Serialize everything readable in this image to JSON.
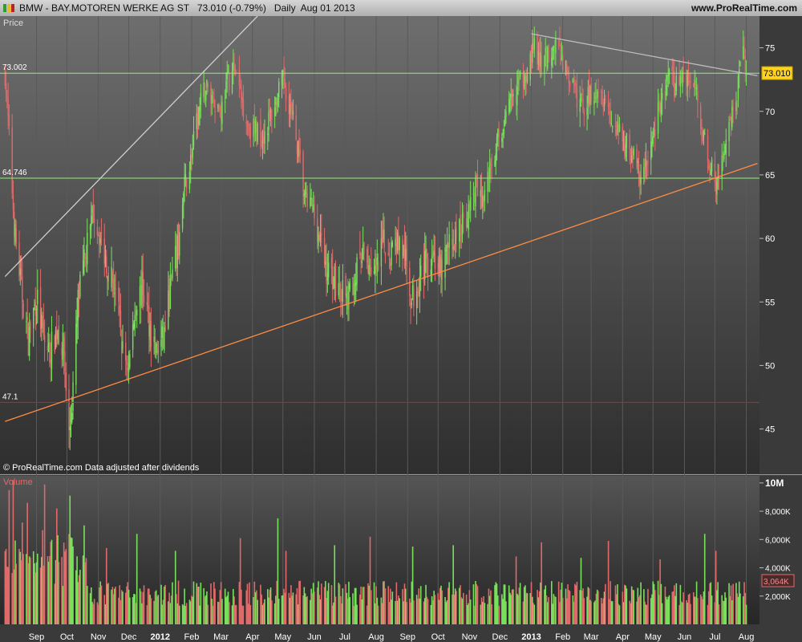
{
  "header": {
    "symbol": "BMW",
    "name": "BAY.MOTOREN WERKE AG ST",
    "price_text": "73.010 (-0.79%)",
    "period": "Daily",
    "date": "Aug 01 2013",
    "site": "www.ProRealTime.com"
  },
  "chart_data": {
    "type": "candlestick",
    "price_panel": {
      "label": "Price",
      "ylim": [
        41.5,
        77.5
      ],
      "y_ticks": [
        45,
        50,
        55,
        60,
        65,
        70,
        75
      ],
      "last_price": 73.01,
      "last_price_label": "73.010",
      "footer_note": "© ProRealTime.com  Data adjusted after dividends",
      "horizontal_lines": [
        {
          "label": "73.002",
          "value": 73.002,
          "color": "#8ef07a"
        },
        {
          "label": "64.746",
          "value": 64.746,
          "color": "#8ef07a"
        },
        {
          "label": "47.1",
          "value": 47.1,
          "color": "#d81c1c"
        }
      ],
      "trend_lines": [
        {
          "name": "support",
          "color": "#ff8c42",
          "points": [
            [
              "2011-08-01",
              45.6
            ],
            [
              "2013-08-12",
              65.9
            ]
          ]
        },
        {
          "name": "resistance",
          "color": "#bdbdbd",
          "points": [
            [
              "2013-01-01",
              76.1
            ],
            [
              "2013-08-12",
              72.8
            ]
          ]
        },
        {
          "name": "steep",
          "color": "#cfcfcf",
          "points": [
            [
              "2011-08-01",
              57.0
            ],
            [
              "2012-04-06",
              77.5
            ]
          ]
        }
      ],
      "price_path": [
        [
          "2011-08-01",
          73.0
        ],
        [
          "2011-08-05",
          68.0
        ],
        [
          "2011-08-10",
          61.0
        ],
        [
          "2011-08-17",
          56.0
        ],
        [
          "2011-08-24",
          52.0
        ],
        [
          "2011-09-01",
          55.5
        ],
        [
          "2011-09-08",
          52.0
        ],
        [
          "2011-09-14",
          51.0
        ],
        [
          "2011-09-22",
          53.0
        ],
        [
          "2011-09-28",
          51.0
        ],
        [
          "2011-10-03",
          44.5
        ],
        [
          "2011-10-06",
          47.0
        ],
        [
          "2011-10-12",
          55.0
        ],
        [
          "2011-10-20",
          59.0
        ],
        [
          "2011-10-27",
          62.0
        ],
        [
          "2011-11-03",
          60.0
        ],
        [
          "2011-11-10",
          58.0
        ],
        [
          "2011-11-18",
          56.0
        ],
        [
          "2011-11-25",
          51.0
        ],
        [
          "2011-12-01",
          50.0
        ],
        [
          "2011-12-08",
          55.0
        ],
        [
          "2011-12-15",
          56.0
        ],
        [
          "2011-12-22",
          53.0
        ],
        [
          "2011-12-28",
          51.0
        ],
        [
          "2012-01-04",
          52.0
        ],
        [
          "2012-01-11",
          56.0
        ],
        [
          "2012-01-18",
          59.0
        ],
        [
          "2012-01-25",
          64.0
        ],
        [
          "2012-02-01",
          66.5
        ],
        [
          "2012-02-08",
          70.0
        ],
        [
          "2012-02-15",
          72.0
        ],
        [
          "2012-02-22",
          71.0
        ],
        [
          "2012-03-01",
          70.0
        ],
        [
          "2012-03-08",
          72.5
        ],
        [
          "2012-03-14",
          73.5
        ],
        [
          "2012-03-21",
          71.0
        ],
        [
          "2012-03-28",
          69.0
        ],
        [
          "2012-04-04",
          68.5
        ],
        [
          "2012-04-11",
          68.0
        ],
        [
          "2012-04-18",
          69.5
        ],
        [
          "2012-04-25",
          71.0
        ],
        [
          "2012-05-02",
          72.5
        ],
        [
          "2012-05-09",
          70.0
        ],
        [
          "2012-05-16",
          67.0
        ],
        [
          "2012-05-23",
          63.0
        ],
        [
          "2012-05-30",
          62.5
        ],
        [
          "2012-06-06",
          60.0
        ],
        [
          "2012-06-13",
          57.5
        ],
        [
          "2012-06-20",
          57.0
        ],
        [
          "2012-06-27",
          56.0
        ],
        [
          "2012-07-04",
          55.0
        ],
        [
          "2012-07-11",
          57.0
        ],
        [
          "2012-07-18",
          58.5
        ],
        [
          "2012-07-25",
          58.0
        ],
        [
          "2012-08-01",
          57.0
        ],
        [
          "2012-08-08",
          59.5
        ],
        [
          "2012-08-15",
          59.0
        ],
        [
          "2012-08-22",
          60.0
        ],
        [
          "2012-08-29",
          58.5
        ],
        [
          "2012-09-05",
          55.0
        ],
        [
          "2012-09-12",
          57.0
        ],
        [
          "2012-09-19",
          58.0
        ],
        [
          "2012-09-26",
          59.0
        ],
        [
          "2012-10-03",
          57.0
        ],
        [
          "2012-10-10",
          59.0
        ],
        [
          "2012-10-17",
          60.0
        ],
        [
          "2012-10-24",
          61.0
        ],
        [
          "2012-10-31",
          62.0
        ],
        [
          "2012-11-07",
          64.0
        ],
        [
          "2012-11-14",
          63.0
        ],
        [
          "2012-11-21",
          65.5
        ],
        [
          "2012-11-28",
          67.5
        ],
        [
          "2012-12-05",
          69.0
        ],
        [
          "2012-12-12",
          70.5
        ],
        [
          "2012-12-19",
          72.0
        ],
        [
          "2012-12-28",
          73.5
        ],
        [
          "2013-01-04",
          75.0
        ],
        [
          "2013-01-11",
          73.5
        ],
        [
          "2013-01-18",
          74.5
        ],
        [
          "2013-01-25",
          75.5
        ],
        [
          "2013-02-01",
          74.0
        ],
        [
          "2013-02-08",
          72.5
        ],
        [
          "2013-02-15",
          71.0
        ],
        [
          "2013-02-22",
          70.5
        ],
        [
          "2013-03-01",
          71.5
        ],
        [
          "2013-03-08",
          72.0
        ],
        [
          "2013-03-15",
          71.0
        ],
        [
          "2013-03-22",
          69.0
        ],
        [
          "2013-03-29",
          68.0
        ],
        [
          "2013-04-05",
          67.5
        ],
        [
          "2013-04-12",
          66.5
        ],
        [
          "2013-04-19",
          64.5
        ],
        [
          "2013-04-26",
          66.0
        ],
        [
          "2013-05-03",
          69.0
        ],
        [
          "2013-05-10",
          71.0
        ],
        [
          "2013-05-17",
          72.5
        ],
        [
          "2013-05-24",
          72.0
        ],
        [
          "2013-05-31",
          73.0
        ],
        [
          "2013-06-07",
          72.5
        ],
        [
          "2013-06-14",
          71.0
        ],
        [
          "2013-06-20",
          68.0
        ],
        [
          "2013-06-26",
          65.5
        ],
        [
          "2013-07-03",
          64.5
        ],
        [
          "2013-07-10",
          66.5
        ],
        [
          "2013-07-17",
          69.0
        ],
        [
          "2013-07-24",
          72.0
        ],
        [
          "2013-07-29",
          74.5
        ],
        [
          "2013-08-01",
          73.0
        ]
      ]
    },
    "volume_panel": {
      "label": "Volume",
      "ylim": [
        0,
        10500
      ],
      "y_ticks": [
        {
          "value": 2000,
          "label": "2,000K"
        },
        {
          "value": 4000,
          "label": "4,000K"
        },
        {
          "value": 6000,
          "label": "6,000K"
        },
        {
          "value": 8000,
          "label": "8,000K"
        },
        {
          "value": 10000,
          "label": "10M"
        }
      ],
      "last_volume_label": "3,064K",
      "last_volume": 3064,
      "spikes": [
        [
          "2011-08-05",
          9500
        ],
        [
          "2011-08-09",
          10200
        ],
        [
          "2011-08-18",
          7200
        ],
        [
          "2011-08-23",
          8600
        ],
        [
          "2011-09-09",
          9900
        ],
        [
          "2011-09-21",
          8200
        ],
        [
          "2011-10-04",
          9100
        ],
        [
          "2011-10-18",
          7000
        ],
        [
          "2011-11-09",
          5400
        ],
        [
          "2011-12-09",
          6400
        ],
        [
          "2012-01-16",
          5200
        ],
        [
          "2012-03-20",
          6100
        ],
        [
          "2012-04-26",
          7500
        ],
        [
          "2012-05-04",
          5200
        ],
        [
          "2012-06-21",
          5600
        ],
        [
          "2012-07-26",
          6200
        ],
        [
          "2012-09-06",
          5500
        ],
        [
          "2012-10-16",
          5600
        ],
        [
          "2012-12-17",
          4800
        ],
        [
          "2013-01-11",
          5800
        ],
        [
          "2013-02-19",
          4700
        ],
        [
          "2013-03-18",
          5900
        ],
        [
          "2013-05-08",
          4600
        ],
        [
          "2013-06-21",
          6400
        ],
        [
          "2013-07-02",
          5200
        ]
      ]
    },
    "x_axis": {
      "range": [
        "2011-07-27",
        "2013-08-14"
      ],
      "ticks": [
        {
          "date": "2011-09-01",
          "label": "Sep"
        },
        {
          "date": "2011-10-01",
          "label": "Oct"
        },
        {
          "date": "2011-11-01",
          "label": "Nov"
        },
        {
          "date": "2011-12-01",
          "label": "Dec"
        },
        {
          "date": "2012-01-01",
          "label": "2012",
          "bold": true
        },
        {
          "date": "2012-02-01",
          "label": "Feb"
        },
        {
          "date": "2012-03-01",
          "label": "Mar"
        },
        {
          "date": "2012-04-01",
          "label": "Apr"
        },
        {
          "date": "2012-05-01",
          "label": "May"
        },
        {
          "date": "2012-06-01",
          "label": "Jun"
        },
        {
          "date": "2012-07-01",
          "label": "Jul"
        },
        {
          "date": "2012-08-01",
          "label": "Aug"
        },
        {
          "date": "2012-09-01",
          "label": "Sep"
        },
        {
          "date": "2012-10-01",
          "label": "Oct"
        },
        {
          "date": "2012-11-01",
          "label": "Nov"
        },
        {
          "date": "2012-12-01",
          "label": "Dec"
        },
        {
          "date": "2013-01-01",
          "label": "2013",
          "bold": true
        },
        {
          "date": "2013-02-01",
          "label": "Feb"
        },
        {
          "date": "2013-03-01",
          "label": "Mar"
        },
        {
          "date": "2013-04-01",
          "label": "Apr"
        },
        {
          "date": "2013-05-01",
          "label": "May"
        },
        {
          "date": "2013-06-01",
          "label": "Jun"
        },
        {
          "date": "2013-07-01",
          "label": "Jul"
        },
        {
          "date": "2013-08-01",
          "label": "Aug"
        }
      ]
    }
  },
  "colors": {
    "up": "#79e05c",
    "down": "#e06a6a",
    "grid": "#5a5a5a",
    "axis_text": "#ffffff"
  }
}
